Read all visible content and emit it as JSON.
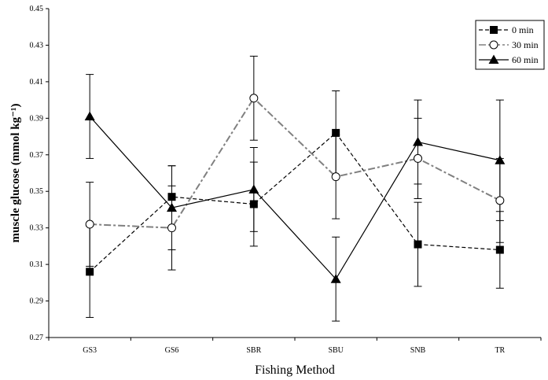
{
  "chart_data": {
    "type": "line",
    "xlabel": "Fishing Method",
    "ylabel": "muscle glucose (mmol kg⁻¹)",
    "categories": [
      "GS3",
      "GS6",
      "SBR",
      "SBU",
      "SNB",
      "TR"
    ],
    "ylim": [
      0.27,
      0.45
    ],
    "yticks": [
      "0.27",
      "0.29",
      "0.31",
      "0.33",
      "0.35",
      "0.37",
      "0.39",
      "0.41",
      "0.43",
      "0.45"
    ],
    "grid": false,
    "legend_position": "top-right",
    "series": [
      {
        "name": "0 min",
        "marker": "square",
        "line_style": "dashed",
        "color": "#000000",
        "values": [
          0.306,
          0.347,
          0.343,
          0.382,
          0.321,
          0.318
        ],
        "error": [
          0.025,
          0.017,
          0.023,
          0.023,
          0.023,
          0.021
        ]
      },
      {
        "name": "30 min",
        "marker": "circle-open",
        "line_style": "dash-dot",
        "color": "#808080",
        "values": [
          0.332,
          0.33,
          0.401,
          0.358,
          0.368,
          0.345
        ],
        "error": [
          0.023,
          0.023,
          0.023,
          0.023,
          0.022,
          0.023
        ]
      },
      {
        "name": "60 min",
        "marker": "triangle",
        "line_style": "solid",
        "color": "#000000",
        "values": [
          0.391,
          0.341,
          0.351,
          0.302,
          0.377,
          0.367
        ],
        "error": [
          0.023,
          0.023,
          0.023,
          0.023,
          0.023,
          0.033
        ]
      }
    ]
  }
}
